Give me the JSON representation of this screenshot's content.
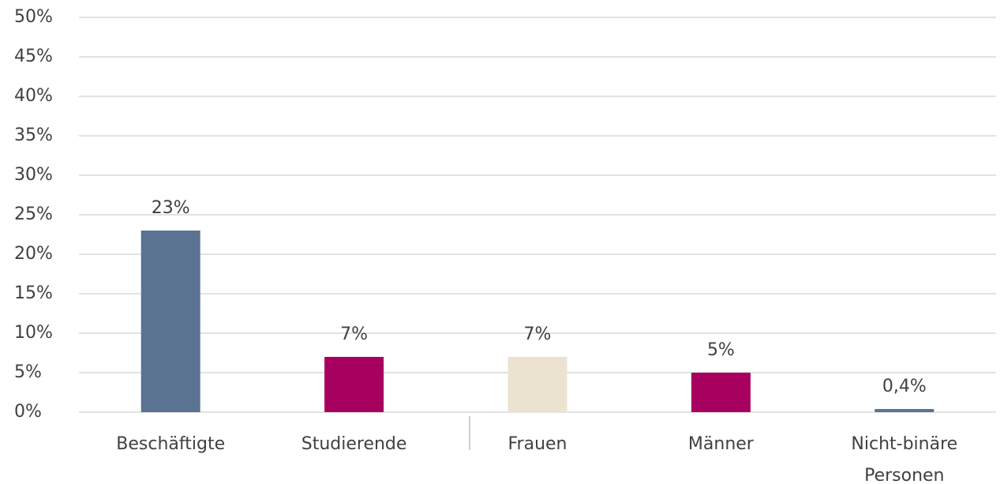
{
  "chart_data": {
    "type": "bar",
    "categories": [
      "Beschäftigte",
      "Studierende",
      "Frauen",
      "Männer",
      "Nicht-binäre Personen"
    ],
    "values": [
      23,
      7,
      7,
      5,
      0.4
    ],
    "value_labels": [
      "23%",
      "7%",
      "7%",
      "5%",
      "0,4%"
    ],
    "colors": [
      "#5a7391",
      "#a8005f",
      "#ebe3d0",
      "#a8005f",
      "#5a7391"
    ],
    "ylim": [
      0,
      50
    ],
    "yticks": [
      {
        "value": 0,
        "label": "0%"
      },
      {
        "value": 5,
        "label": "5%"
      },
      {
        "value": 10,
        "label": "10%"
      },
      {
        "value": 15,
        "label": "15%"
      },
      {
        "value": 20,
        "label": "20%"
      },
      {
        "value": 25,
        "label": "25%"
      },
      {
        "value": 30,
        "label": "30%"
      },
      {
        "value": 35,
        "label": "35%"
      },
      {
        "value": 40,
        "label": "40%"
      },
      {
        "value": 45,
        "label": "45%"
      },
      {
        "value": 50,
        "label": "50%"
      }
    ],
    "grid": true
  }
}
